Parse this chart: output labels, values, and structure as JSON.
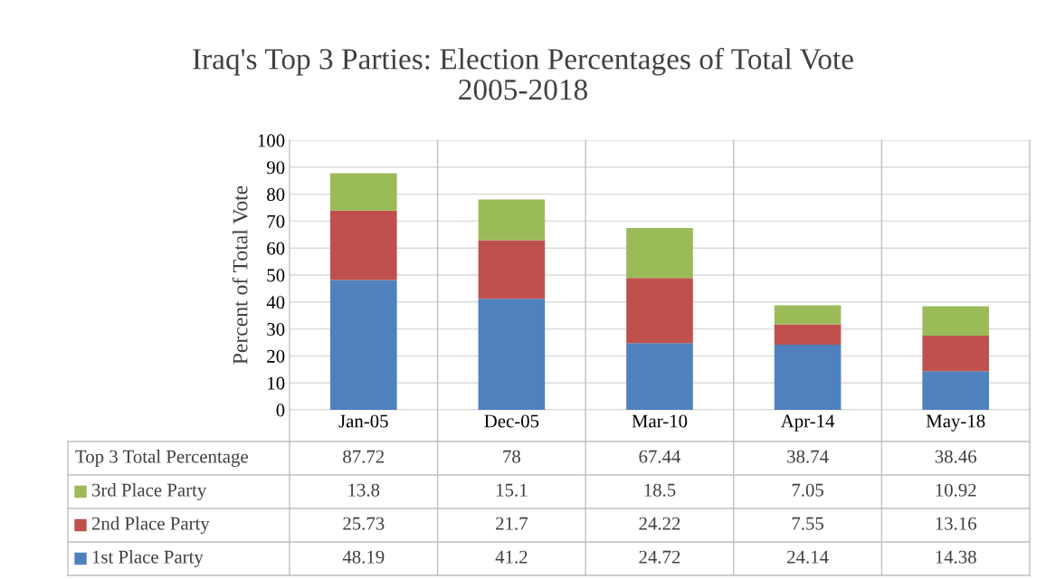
{
  "chart_data": {
    "type": "bar",
    "title": "Iraq's Top 3 Parties: Election Percentages of Total Vote\n2005-2018",
    "ylabel": "Percent of Total Vote",
    "categories": [
      "Jan-05",
      "Dec-05",
      "Mar-10",
      "Apr-14",
      "May-18"
    ],
    "stacked": true,
    "series": [
      {
        "name": "1st Place Party",
        "color": "#4f81bd",
        "values": [
          48.19,
          41.2,
          24.72,
          24.14,
          14.38
        ]
      },
      {
        "name": "2nd Place Party",
        "color": "#c0504d",
        "values": [
          25.73,
          21.7,
          24.22,
          7.55,
          13.16
        ]
      },
      {
        "name": "3rd Place Party",
        "color": "#9bbb59",
        "values": [
          13.8,
          15.1,
          18.5,
          7.05,
          10.92
        ]
      }
    ],
    "totals": [
      "87.72",
      "78",
      "67.44",
      "38.74",
      "38.46"
    ],
    "annotations": [
      "Top 3 Total Percentage"
    ],
    "data_labels": true,
    "ylim": [
      0,
      100
    ],
    "yticks": [
      0,
      10,
      20,
      30,
      40,
      50,
      60,
      70,
      80,
      90,
      100
    ],
    "grid": "y",
    "legend": "bottom"
  }
}
